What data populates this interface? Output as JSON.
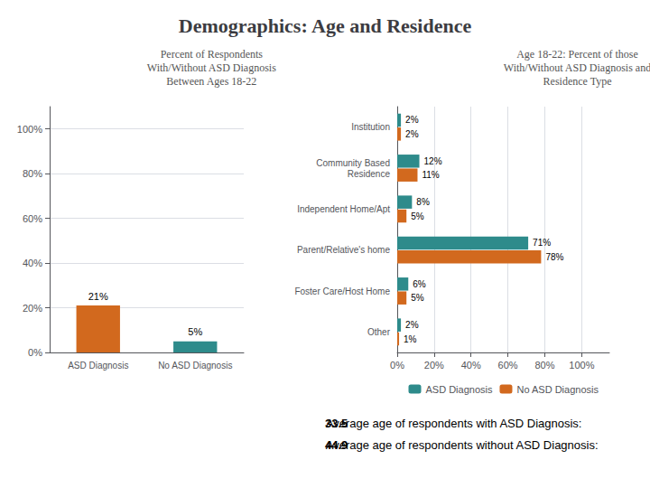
{
  "title": "Demographics: Age and Residence",
  "chart_data": [
    {
      "type": "bar",
      "title": "Percent of Respondents\nWith/Without ASD Diagnosis\nBetween Ages 18-22",
      "categories": [
        "ASD Diagnosis",
        "No ASD Diagnosis"
      ],
      "values": [
        21,
        5
      ],
      "value_labels": [
        "21%",
        "5%"
      ],
      "colors": [
        "#D2691E",
        "#2E8B8B"
      ],
      "ylim": [
        0,
        110
      ],
      "yticks": [
        {
          "value": 0,
          "label": "0%"
        },
        {
          "value": 20,
          "label": "20%"
        },
        {
          "value": 40,
          "label": "40%"
        },
        {
          "value": 60,
          "label": "60%"
        },
        {
          "value": 80,
          "label": "80%"
        },
        {
          "value": 100,
          "label": "100%"
        }
      ],
      "grid": true,
      "data_labels": true
    },
    {
      "type": "bar",
      "orientation": "horizontal",
      "title": "Age 18-22: Percent of those\nWith/Without ASD Diagnosis and\nResidence Type",
      "categories": [
        "Institution",
        "Community Based\nResidence",
        "Independent Home/Apt",
        "Parent/Relative's home",
        "Foster Care/Host Home",
        "Other"
      ],
      "series": [
        {
          "name": "ASD Diagnosis",
          "color": "#2E8B8B",
          "values": [
            2,
            12,
            8,
            71,
            6,
            2
          ],
          "value_labels": [
            "2%",
            "12%",
            "8%",
            "71%",
            "6%",
            "2%"
          ]
        },
        {
          "name": "No ASD Diagnosis",
          "color": "#D2691E",
          "values": [
            2,
            11,
            5,
            78,
            5,
            1
          ],
          "value_labels": [
            "2%",
            "11%",
            "5%",
            "78%",
            "5%",
            "1%"
          ]
        }
      ],
      "xlim": [
        0,
        115
      ],
      "xticks": [
        {
          "value": 0,
          "label": "0%"
        },
        {
          "value": 20,
          "label": "20%"
        },
        {
          "value": 40,
          "label": "40%"
        },
        {
          "value": 60,
          "label": "60%"
        },
        {
          "value": 80,
          "label": "80%"
        },
        {
          "value": 100,
          "label": "100%"
        }
      ],
      "grid": true,
      "legend": "bottom",
      "data_labels": true
    }
  ],
  "annotations": [
    {
      "text": "Average age of respondents with ASD Diagnosis: ",
      "emphasis": "33.5"
    },
    {
      "text": "Average age of respondents without ASD Diagnosis: ",
      "emphasis": "44.9"
    }
  ]
}
